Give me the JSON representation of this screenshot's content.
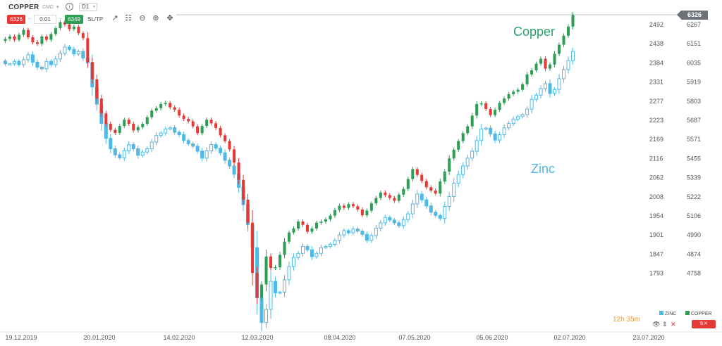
{
  "toolbar": {
    "symbol": "COPPER",
    "instrument_type": "CMD",
    "timeframe": "D1",
    "sell_price": "6326",
    "volume": "0.01",
    "buy_price": "6349",
    "sltp_label": "SL/TP",
    "icons": [
      "line-chart-icon",
      "candle-settings-icon",
      "zoom-out-icon",
      "zoom-in-icon",
      "crosshair-icon"
    ]
  },
  "status": {
    "timer": "12h 35m",
    "legend_zinc": "ZINC",
    "legend_copper": "COPPER",
    "zinc_color": "#4fb8e6",
    "copper_up_color": "#2e9e55",
    "copper_down_color": "#e53935"
  },
  "chart_data": {
    "type": "candlestick",
    "annotations": {
      "copper": "Copper",
      "zinc": "Zinc"
    },
    "last_price_label": "6326",
    "x_labels": [
      "19.12.2019",
      "20.01.2020",
      "14.02.2020",
      "12.03.2020",
      "08.04.2020",
      "07.05.2020",
      "05.06.2020",
      "02.07.2020",
      "23.07.2020"
    ],
    "left_axis": {
      "series": "ZINC",
      "ticks": [
        "2492",
        "2438",
        "2384",
        "2331",
        "2277",
        "2223",
        "2169",
        "2116",
        "2062",
        "2008",
        "1954",
        "1901",
        "1847",
        "1793"
      ]
    },
    "right_axis": {
      "series": "COPPER",
      "ticks": [
        "6267",
        "6151",
        "6035",
        "5919",
        "5803",
        "5687",
        "5571",
        "5455",
        "5339",
        "5222",
        "5106",
        "4990",
        "4874",
        "4758"
      ]
    },
    "series": [
      {
        "name": "COPPER",
        "axis": "right",
        "close": [
          6180,
          6195,
          6175,
          6205,
          6235,
          6190,
          6160,
          6150,
          6195,
          6175,
          6210,
          6245,
          6282,
          6268,
          6240,
          6255,
          6215,
          6185,
          6040,
          5935,
          5818,
          5728,
          5665,
          5628,
          5610,
          5652,
          5690,
          5665,
          5625,
          5645,
          5665,
          5705,
          5745,
          5760,
          5785,
          5792,
          5765,
          5750,
          5715,
          5695,
          5680,
          5650,
          5608,
          5652,
          5690,
          5668,
          5640,
          5595,
          5560,
          5510,
          5430,
          5325,
          5205,
          5065,
          4760,
          4610,
          4690,
          4860,
          4790,
          4795,
          4870,
          4950,
          5005,
          5030,
          5072,
          5052,
          5010,
          5030,
          5065,
          5072,
          5085,
          5108,
          5142,
          5168,
          5155,
          5178,
          5165,
          5145,
          5110,
          5138,
          5182,
          5215,
          5248,
          5232,
          5215,
          5198,
          5235,
          5270,
          5330,
          5390,
          5355,
          5318,
          5280,
          5260,
          5242,
          5315,
          5375,
          5455,
          5508,
          5560,
          5608,
          5650,
          5715,
          5785,
          5790,
          5755,
          5718,
          5750,
          5792,
          5818,
          5845,
          5860,
          5872,
          5905,
          5965,
          5990,
          6030,
          6060,
          6000,
          6025,
          6090,
          6145,
          6200,
          6255,
          6326
        ]
      }
    ]
  }
}
